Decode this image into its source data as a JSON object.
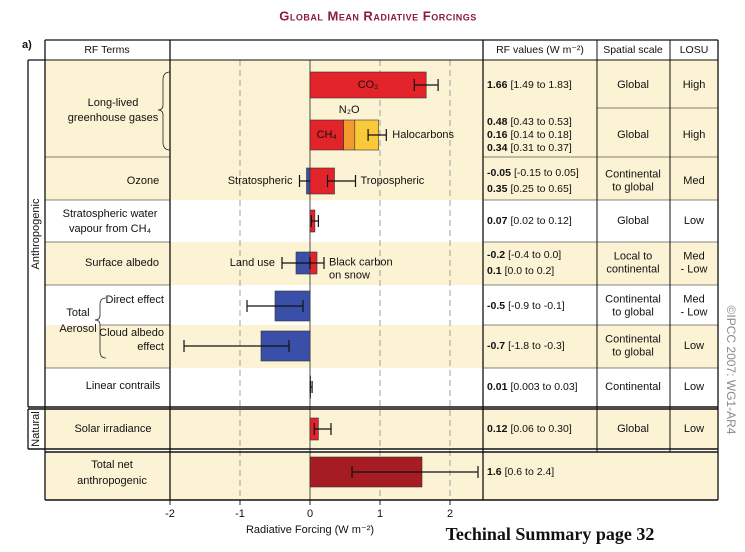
{
  "chart_data": {
    "type": "bar",
    "orientation": "horizontal",
    "title": "Global Mean Radiative Forcings",
    "panel_label": "a)",
    "xlabel": "Radiative Forcing  (W m⁻²)",
    "xlim": [
      -2,
      2.5
    ],
    "xticks": [
      -2,
      -1,
      0,
      1,
      2
    ],
    "grid": true,
    "rows": [
      {
        "bars": [
          {
            "name": [
              "CO₂"
            ],
            "value": 1.66,
            "range": [
              1.49,
              1.83
            ],
            "range_label": "[1.49 to 1.83]",
            "color": "#e2232a",
            "text_color": "#d7262b"
          }
        ],
        "spatial": [
          "Global"
        ],
        "losu": [
          "High"
        ]
      },
      {
        "stack": [
          {
            "name": [
              "CH₄"
            ],
            "value": 0.48,
            "range_label": "[0.43 to 0.53]",
            "color": "#e2232a",
            "text_color": "#d7262b"
          },
          {
            "name": [
              "N₂O"
            ],
            "value": 0.16,
            "range_label": "[0.14 to 0.18]",
            "color": "#f29a2e",
            "text_color": "#ee8a1c"
          },
          {
            "name": [
              "Halocarbons"
            ],
            "value": 0.34,
            "range_label": "[0.31 to 0.37]",
            "color": "#f9c93a",
            "text_color": "#e6ad14"
          }
        ],
        "stack_range": [
          0.83,
          1.09
        ],
        "spatial": [
          "Global"
        ],
        "losu": [
          "High"
        ]
      },
      {
        "bars": [
          {
            "name": [
              "Stratospheric"
            ],
            "value": -0.05,
            "range": [
              -0.15,
              0.05
            ],
            "range_label": "[-0.15 to 0.05]",
            "color": "#3a50a8",
            "text_color": "#3a50a8"
          },
          {
            "name": [
              "Tropospheric"
            ],
            "value": 0.35,
            "range": [
              0.25,
              0.65
            ],
            "range_label": "[0.25 to 0.65]",
            "color": "#e2232a",
            "text_color": "#d7262b"
          }
        ],
        "spatial": [
          "Continental",
          "to global"
        ],
        "losu": [
          "Med"
        ]
      },
      {
        "bars": [
          {
            "value": 0.07,
            "range": [
              0.02,
              0.12
            ],
            "range_label": "[0.02 to 0.12]",
            "color": "#e2232a",
            "text_color": "#d7262b"
          }
        ],
        "spatial": [
          "Global"
        ],
        "losu": [
          "Low"
        ]
      },
      {
        "bars": [
          {
            "name": [
              "Land use"
            ],
            "value": -0.2,
            "range": [
              -0.4,
              0.0
            ],
            "range_label": "[-0.4 to 0.0]",
            "color": "#3a50a8",
            "text_color": "#3a50a8"
          },
          {
            "name": [
              "Black carbon",
              "on snow"
            ],
            "value": 0.1,
            "range": [
              0.0,
              0.2
            ],
            "range_label": "[0.0 to 0.2]",
            "color": "#e2232a",
            "text_color": "#d7262b"
          }
        ],
        "spatial": [
          "Local to",
          "continental"
        ],
        "losu": [
          "Med",
          "- Low"
        ]
      },
      {
        "sublabel": [
          "Direct effect"
        ],
        "bars": [
          {
            "value": -0.5,
            "range": [
              -0.9,
              -0.1
            ],
            "range_label": "[-0.9 to -0.1]",
            "color": "#3a50a8",
            "text_color": "#3a50a8"
          }
        ],
        "spatial": [
          "Continental",
          "to global"
        ],
        "losu": [
          "Med",
          "- Low"
        ]
      },
      {
        "sublabel": [
          "Cloud albedo",
          "effect"
        ],
        "bars": [
          {
            "value": -0.7,
            "range": [
              -1.8,
              -0.3
            ],
            "range_label": "[-1.8 to -0.3]",
            "color": "#3a50a8",
            "text_color": "#3a50a8"
          }
        ],
        "spatial": [
          "Continental",
          "to global"
        ],
        "losu": [
          "Low"
        ]
      },
      {
        "bars": [
          {
            "value": 0.01,
            "range": [
              0.003,
              0.03
            ],
            "range_label": "[0.003 to 0.03]",
            "color": "#e2232a",
            "text_color": "#d7262b"
          }
        ],
        "spatial": [
          "Continental"
        ],
        "losu": [
          "Low"
        ]
      },
      {
        "bars": [
          {
            "value": 0.12,
            "range": [
              0.06,
              0.3
            ],
            "range_label": "[0.06 to 0.30]",
            "color": "#e2232a",
            "text_color": "#d7262b"
          }
        ],
        "spatial": [
          "Global"
        ],
        "losu": [
          "Low"
        ]
      },
      {
        "bars": [
          {
            "value": 1.6,
            "range": [
              0.6,
              2.4
            ],
            "range_label": "[0.6 to 2.4]",
            "color": "#a51d22",
            "text_color": "#c4161c"
          }
        ]
      }
    ]
  },
  "table": {
    "headers": [
      "RF Terms",
      "RF values (W m⁻²)",
      "Spatial scale",
      "LOSU"
    ],
    "terms": [
      {
        "lines": [
          "Long-lived",
          "greenhouse gases"
        ]
      },
      {
        "lines": [
          "Ozone"
        ]
      },
      {
        "lines": [
          "Stratospheric water",
          "vapour from CH₄"
        ]
      },
      {
        "lines": [
          "Surface albedo"
        ]
      },
      {
        "lines": [
          "Total",
          "Aerosol"
        ]
      },
      {
        "lines": [
          "Linear contrails"
        ]
      },
      {
        "lines": [
          "Solar irradiance"
        ]
      },
      {
        "lines": [
          "Total net",
          "anthropogenic"
        ]
      }
    ],
    "groups": [
      "Anthropogenic",
      "Natural"
    ]
  },
  "footer": "Techinal Summary page 32",
  "copyright": "©IPCC 2007: WG1-AR4"
}
